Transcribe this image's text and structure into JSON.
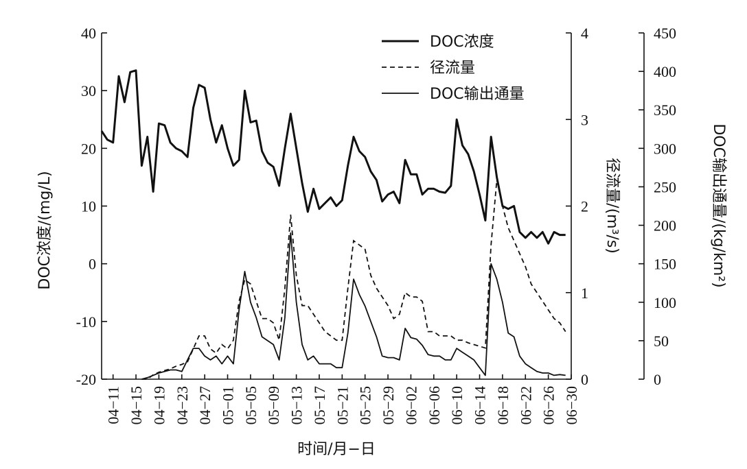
{
  "chart_data": {
    "type": "line",
    "xlabel": "时间/月−日",
    "x_ticks": [
      "04−11",
      "04−15",
      "04−19",
      "04−23",
      "04−27",
      "05−01",
      "05−05",
      "05−09",
      "05−13",
      "05−17",
      "05−21",
      "05−25",
      "05−29",
      "06−02",
      "06−06",
      "06−10",
      "06−14",
      "06−18",
      "06−22",
      "06−26",
      "06−30"
    ],
    "axes": {
      "left": {
        "label": "DOC浓度/(mg/L)",
        "range": [
          -20,
          40
        ],
        "ticks": [
          -20,
          -10,
          0,
          10,
          20,
          30,
          40
        ]
      },
      "right1": {
        "label": "径流量/(m³/s)",
        "range": [
          0,
          4
        ],
        "ticks": [
          0,
          1,
          2,
          3,
          4
        ]
      },
      "right2": {
        "label": "DOC输出通量/(kg/km²)",
        "range": [
          0,
          450
        ],
        "ticks": [
          0,
          50,
          100,
          150,
          200,
          250,
          300,
          350,
          400,
          450
        ]
      }
    },
    "legend_position": "top-right",
    "grid": false,
    "series": [
      {
        "name": "DOC浓度",
        "axis": "left",
        "style": "solid-thick",
        "points": [
          [
            "04-09",
            23
          ],
          [
            "04-10",
            21.5
          ],
          [
            "04-11",
            21
          ],
          [
            "04-12",
            32.5
          ],
          [
            "04-13",
            28
          ],
          [
            "04-14",
            33.2
          ],
          [
            "04-15",
            33.5
          ],
          [
            "04-16",
            17
          ],
          [
            "04-17",
            22
          ],
          [
            "04-18",
            12.5
          ],
          [
            "04-19",
            24.3
          ],
          [
            "04-20",
            24
          ],
          [
            "04-21",
            21
          ],
          [
            "04-22",
            20
          ],
          [
            "04-23",
            19.5
          ],
          [
            "04-24",
            18.5
          ],
          [
            "04-25",
            27
          ],
          [
            "04-26",
            31
          ],
          [
            "04-27",
            30.5
          ],
          [
            "04-28",
            25
          ],
          [
            "04-29",
            21
          ],
          [
            "04-30",
            24
          ],
          [
            "05-01",
            20
          ],
          [
            "05-02",
            17
          ],
          [
            "05-03",
            18
          ],
          [
            "05-04",
            30
          ],
          [
            "05-05",
            24.5
          ],
          [
            "05-06",
            24.8
          ],
          [
            "05-07",
            19.5
          ],
          [
            "05-08",
            17.5
          ],
          [
            "05-09",
            16.8
          ],
          [
            "05-10",
            13.5
          ],
          [
            "05-11",
            20
          ],
          [
            "05-12",
            26
          ],
          [
            "05-13",
            20
          ],
          [
            "05-14",
            14
          ],
          [
            "05-15",
            9
          ],
          [
            "05-16",
            13
          ],
          [
            "05-17",
            9.5
          ],
          [
            "05-18",
            10.5
          ],
          [
            "05-19",
            11.5
          ],
          [
            "05-20",
            10
          ],
          [
            "05-21",
            11
          ],
          [
            "05-22",
            17
          ],
          [
            "05-23",
            22
          ],
          [
            "05-24",
            19.5
          ],
          [
            "05-25",
            18.5
          ],
          [
            "05-26",
            16
          ],
          [
            "05-27",
            14.5
          ],
          [
            "05-28",
            10.8
          ],
          [
            "05-29",
            12
          ],
          [
            "05-30",
            12.5
          ],
          [
            "05-31",
            10.5
          ],
          [
            "06-01",
            18
          ],
          [
            "06-02",
            15.5
          ],
          [
            "06-03",
            15.5
          ],
          [
            "06-04",
            12
          ],
          [
            "06-05",
            13
          ],
          [
            "06-06",
            13
          ],
          [
            "06-07",
            12.5
          ],
          [
            "06-08",
            12.3
          ],
          [
            "06-09",
            13.5
          ],
          [
            "06-10",
            25
          ],
          [
            "06-11",
            20.5
          ],
          [
            "06-12",
            19
          ],
          [
            "06-13",
            16
          ],
          [
            "06-14",
            12
          ],
          [
            "06-15",
            7.5
          ],
          [
            "06-16",
            22
          ],
          [
            "06-17",
            15
          ],
          [
            "06-18",
            10
          ],
          [
            "06-19",
            9.5
          ],
          [
            "06-20",
            10
          ],
          [
            "06-21",
            5.5
          ],
          [
            "06-22",
            4.5
          ],
          [
            "06-23",
            5.5
          ],
          [
            "06-24",
            4.5
          ],
          [
            "06-25",
            5.5
          ],
          [
            "06-26",
            3.5
          ],
          [
            "06-27",
            5.5
          ],
          [
            "06-28",
            5
          ],
          [
            "06-29",
            5
          ]
        ]
      },
      {
        "name": "径流量",
        "axis": "right1",
        "style": "dashed",
        "points": [
          [
            "04-16",
            0
          ],
          [
            "04-17",
            0
          ],
          [
            "04-18",
            0.05
          ],
          [
            "04-19",
            0.08
          ],
          [
            "04-20",
            0.1
          ],
          [
            "04-21",
            0.12
          ],
          [
            "04-22",
            0.15
          ],
          [
            "04-23",
            0.17
          ],
          [
            "04-24",
            0.2
          ],
          [
            "04-25",
            0.35
          ],
          [
            "04-26",
            0.5
          ],
          [
            "04-27",
            0.5
          ],
          [
            "04-28",
            0.35
          ],
          [
            "04-29",
            0.3
          ],
          [
            "04-30",
            0.4
          ],
          [
            "05-01",
            0.35
          ],
          [
            "05-02",
            0.45
          ],
          [
            "05-03",
            0.9
          ],
          [
            "05-04",
            1.15
          ],
          [
            "05-05",
            1.1
          ],
          [
            "05-06",
            0.9
          ],
          [
            "05-07",
            0.7
          ],
          [
            "05-08",
            0.7
          ],
          [
            "05-09",
            0.65
          ],
          [
            "05-10",
            0.45
          ],
          [
            "05-11",
            1.05
          ],
          [
            "05-12",
            1.9
          ],
          [
            "05-13",
            1.2
          ],
          [
            "05-14",
            0.85
          ],
          [
            "05-15",
            0.85
          ],
          [
            "05-16",
            0.75
          ],
          [
            "05-17",
            0.65
          ],
          [
            "05-18",
            0.55
          ],
          [
            "05-19",
            0.5
          ],
          [
            "05-20",
            0.45
          ],
          [
            "05-21",
            0.45
          ],
          [
            "05-22",
            1.05
          ],
          [
            "05-23",
            1.6
          ],
          [
            "05-24",
            1.55
          ],
          [
            "05-25",
            1.5
          ],
          [
            "05-26",
            1.2
          ],
          [
            "05-27",
            1.05
          ],
          [
            "05-28",
            0.95
          ],
          [
            "05-29",
            0.85
          ],
          [
            "05-30",
            0.7
          ],
          [
            "05-31",
            0.75
          ],
          [
            "06-01",
            1.0
          ],
          [
            "06-02",
            0.95
          ],
          [
            "06-03",
            0.95
          ],
          [
            "06-04",
            0.9
          ],
          [
            "06-05",
            0.55
          ],
          [
            "06-06",
            0.55
          ],
          [
            "06-07",
            0.5
          ],
          [
            "06-08",
            0.5
          ],
          [
            "06-09",
            0.5
          ],
          [
            "06-10",
            0.45
          ],
          [
            "06-11",
            0.45
          ],
          [
            "06-12",
            0.42
          ],
          [
            "06-13",
            0.4
          ],
          [
            "06-14",
            0.38
          ],
          [
            "06-15",
            0.36
          ],
          [
            "06-16",
            1.55
          ],
          [
            "06-17",
            2.3
          ],
          [
            "06-18",
            2.0
          ],
          [
            "06-19",
            1.75
          ],
          [
            "06-20",
            1.6
          ],
          [
            "06-21",
            1.45
          ],
          [
            "06-22",
            1.3
          ],
          [
            "06-23",
            1.1
          ],
          [
            "06-24",
            1.0
          ],
          [
            "06-25",
            0.9
          ],
          [
            "06-26",
            0.8
          ],
          [
            "06-27",
            0.7
          ],
          [
            "06-28",
            0.65
          ],
          [
            "06-29",
            0.55
          ]
        ]
      },
      {
        "name": "DOC输出通量",
        "axis": "right2",
        "style": "solid-thin",
        "points": [
          [
            "04-16",
            0
          ],
          [
            "04-17",
            2
          ],
          [
            "04-18",
            5
          ],
          [
            "04-19",
            8
          ],
          [
            "04-20",
            10
          ],
          [
            "04-21",
            12
          ],
          [
            "04-22",
            12
          ],
          [
            "04-23",
            10
          ],
          [
            "04-24",
            25
          ],
          [
            "04-25",
            40
          ],
          [
            "04-26",
            40
          ],
          [
            "04-27",
            30
          ],
          [
            "04-28",
            25
          ],
          [
            "04-29",
            30
          ],
          [
            "04-30",
            20
          ],
          [
            "05-01",
            30
          ],
          [
            "05-02",
            20
          ],
          [
            "05-03",
            90
          ],
          [
            "05-04",
            140
          ],
          [
            "05-05",
            100
          ],
          [
            "05-06",
            80
          ],
          [
            "05-07",
            55
          ],
          [
            "05-08",
            50
          ],
          [
            "05-09",
            45
          ],
          [
            "05-10",
            25
          ],
          [
            "05-11",
            80
          ],
          [
            "05-12",
            190
          ],
          [
            "05-13",
            100
          ],
          [
            "05-14",
            45
          ],
          [
            "05-15",
            25
          ],
          [
            "05-16",
            30
          ],
          [
            "05-17",
            20
          ],
          [
            "05-18",
            20
          ],
          [
            "05-19",
            20
          ],
          [
            "05-20",
            15
          ],
          [
            "05-21",
            15
          ],
          [
            "05-22",
            60
          ],
          [
            "05-23",
            130
          ],
          [
            "05-24",
            110
          ],
          [
            "05-25",
            95
          ],
          [
            "05-26",
            75
          ],
          [
            "05-27",
            55
          ],
          [
            "05-28",
            30
          ],
          [
            "05-29",
            28
          ],
          [
            "05-30",
            28
          ],
          [
            "05-31",
            25
          ],
          [
            "06-01",
            66
          ],
          [
            "06-02",
            54
          ],
          [
            "06-03",
            52
          ],
          [
            "06-04",
            44
          ],
          [
            "06-05",
            32
          ],
          [
            "06-06",
            30
          ],
          [
            "06-07",
            30
          ],
          [
            "06-08",
            25
          ],
          [
            "06-09",
            25
          ],
          [
            "06-10",
            40
          ],
          [
            "06-11",
            35
          ],
          [
            "06-12",
            30
          ],
          [
            "06-13",
            25
          ],
          [
            "06-14",
            15
          ],
          [
            "06-15",
            5
          ],
          [
            "06-16",
            150
          ],
          [
            "06-17",
            130
          ],
          [
            "06-18",
            100
          ],
          [
            "06-19",
            60
          ],
          [
            "06-20",
            55
          ],
          [
            "06-21",
            30
          ],
          [
            "06-22",
            20
          ],
          [
            "06-23",
            15
          ],
          [
            "06-24",
            10
          ],
          [
            "06-25",
            8
          ],
          [
            "06-26",
            8
          ],
          [
            "06-27",
            5
          ],
          [
            "06-28",
            6
          ],
          [
            "06-29",
            5
          ]
        ]
      }
    ]
  }
}
